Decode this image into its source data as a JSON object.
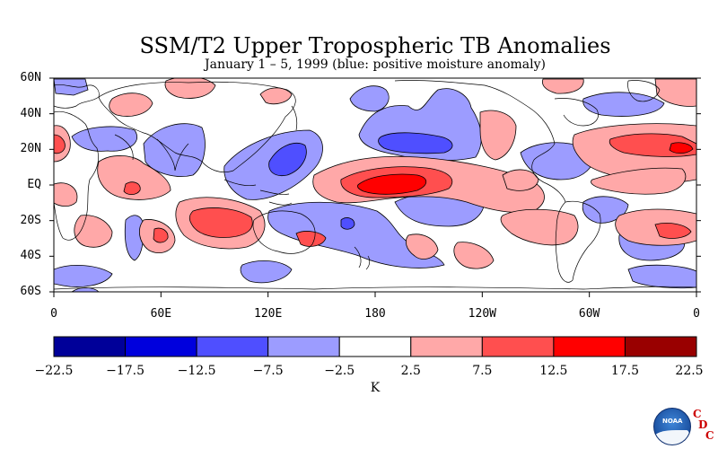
{
  "title": "SSM/T2 Upper Tropospheric TB Anomalies",
  "subtitle": "January 1 – 5, 1999 (blue: positive moisture anomaly)",
  "lat_labels": [
    "60N",
    "40N",
    "20N",
    "EQ",
    "20S",
    "40S",
    "60S"
  ],
  "lat_values": [
    60,
    40,
    20,
    0,
    -20,
    -40,
    -60
  ],
  "lon_labels": [
    "0",
    "60E",
    "120E",
    "180",
    "120W",
    "60W",
    "0"
  ],
  "lon_values": [
    0,
    60,
    120,
    180,
    240,
    300,
    360
  ],
  "colorbar": {
    "unit": "K",
    "labels": [
      "−22.5",
      "−17.5",
      "−12.5",
      "−7.5",
      "−2.5",
      "2.5",
      "7.5",
      "12.5",
      "17.5",
      "22.5"
    ],
    "levels": [
      -22.5,
      -17.5,
      -12.5,
      -7.5,
      -2.5,
      2.5,
      7.5,
      12.5,
      17.5,
      22.5
    ],
    "colors": [
      "#000099",
      "#0000dd",
      "#4f4fff",
      "#9c9cff",
      "#ffffff",
      "#ffa8a8",
      "#ff4f4f",
      "#ff0000",
      "#990000"
    ]
  },
  "logo": {
    "text": "NOAA",
    "letters": [
      "C",
      "D",
      "C"
    ]
  }
}
